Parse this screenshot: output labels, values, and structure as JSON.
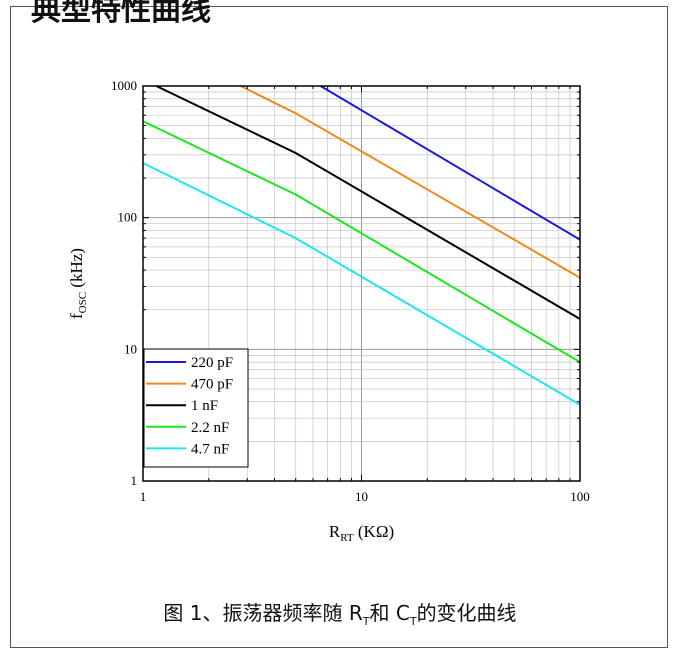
{
  "heading": "典型特性曲线",
  "caption": {
    "prefix": "图 1、振荡器频率随 R",
    "sub1": "T",
    "mid": "和 C",
    "sub2": "T",
    "suffix": "的变化曲线"
  },
  "chart_data": {
    "type": "line",
    "xscale": "log",
    "yscale": "log",
    "xlim": [
      1,
      100
    ],
    "ylim": [
      1,
      1000
    ],
    "xlabel": {
      "main": "R",
      "sub": "RT",
      "rest": " (KΩ)"
    },
    "ylabel": {
      "main": "f",
      "sub": "OSC",
      "rest": " (kHz)"
    },
    "xticks": [
      "1",
      "10",
      "100"
    ],
    "yticks": [
      "1",
      "10",
      "100",
      "1000"
    ],
    "grid": true,
    "legend_position": "bottom-left",
    "series": [
      {
        "name": "220 pF",
        "color": "#1a1adc",
        "x": [
          6.5,
          100
        ],
        "y": [
          1000,
          68
        ]
      },
      {
        "name": "470 pF",
        "color": "#f08a1e",
        "x": [
          2.8,
          5,
          100
        ],
        "y": [
          1000,
          620,
          35
        ]
      },
      {
        "name": "1 nF",
        "color": "#000000",
        "x": [
          1.15,
          5,
          100
        ],
        "y": [
          1000,
          310,
          17
        ]
      },
      {
        "name": "2.2 nF",
        "color": "#1ee61e",
        "x": [
          1,
          5,
          100
        ],
        "y": [
          540,
          150,
          8
        ]
      },
      {
        "name": "4.7 nF",
        "color": "#1ee6f0",
        "x": [
          1,
          5,
          100
        ],
        "y": [
          260,
          70,
          3.8
        ]
      }
    ]
  }
}
